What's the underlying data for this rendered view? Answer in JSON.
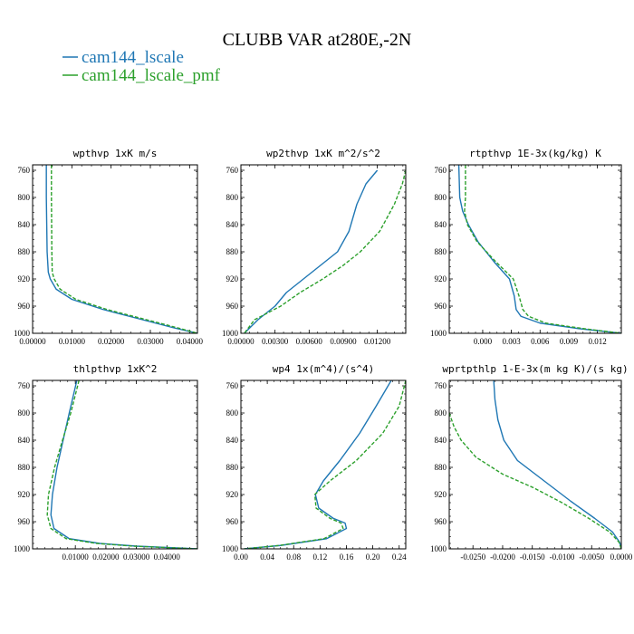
{
  "figure": {
    "title": "CLUBB VAR at280E,-2N",
    "series": [
      {
        "name": "cam144_lscale",
        "color": "#1f77b4",
        "dash": "solid"
      },
      {
        "name": "cam144_lscale_pmf",
        "color": "#2ca02c",
        "dash": "dashed"
      }
    ]
  },
  "chart_data": [
    {
      "type": "line",
      "title": "wpthvp   1xK m/s",
      "xlim": [
        0,
        0.042
      ],
      "xticks": [
        0,
        0.01,
        0.02,
        0.03,
        0.04
      ],
      "xticklabels": [
        "0.00000",
        "0.01000",
        "0.02000",
        "0.03000",
        "0.04000"
      ],
      "ylim": [
        1000,
        752
      ],
      "yticks": [
        760,
        800,
        840,
        880,
        920,
        960,
        1000
      ],
      "series": [
        {
          "name": "cam144_lscale",
          "points": [
            [
              0.0035,
              752
            ],
            [
              0.0035,
              800
            ],
            [
              0.0037,
              880
            ],
            [
              0.004,
              910
            ],
            [
              0.0045,
              920
            ],
            [
              0.006,
              935
            ],
            [
              0.01,
              950
            ],
            [
              0.018,
              965
            ],
            [
              0.028,
              980
            ],
            [
              0.036,
              992
            ],
            [
              0.042,
              1000
            ]
          ]
        },
        {
          "name": "cam144_lscale_pmf",
          "points": [
            [
              0.0048,
              752
            ],
            [
              0.0048,
              800
            ],
            [
              0.0049,
              880
            ],
            [
              0.005,
              910
            ],
            [
              0.0055,
              920
            ],
            [
              0.007,
              935
            ],
            [
              0.011,
              950
            ],
            [
              0.019,
              965
            ],
            [
              0.029,
              980
            ],
            [
              0.037,
              992
            ],
            [
              0.042,
              1000
            ]
          ]
        }
      ]
    },
    {
      "type": "line",
      "title": "wp2thvp   1xK m^2/s^2",
      "xlim": [
        0,
        0.0145
      ],
      "xticks": [
        0,
        0.003,
        0.006,
        0.009,
        0.012
      ],
      "xticklabels": [
        "0.00000",
        "0.00300",
        "0.00600",
        "0.00900",
        "0.01200"
      ],
      "ylim": [
        1000,
        752
      ],
      "yticks": [
        760,
        800,
        840,
        880,
        920,
        960,
        1000
      ],
      "series": [
        {
          "name": "cam144_lscale",
          "points": [
            [
              0.012,
              760
            ],
            [
              0.011,
              780
            ],
            [
              0.0102,
              810
            ],
            [
              0.0095,
              850
            ],
            [
              0.0085,
              880
            ],
            [
              0.007,
              900
            ],
            [
              0.0055,
              920
            ],
            [
              0.004,
              940
            ],
            [
              0.003,
              960
            ],
            [
              0.0015,
              980
            ],
            [
              0.0003,
              1000
            ]
          ]
        },
        {
          "name": "cam144_lscale_pmf",
          "points": [
            [
              0.0145,
              760
            ],
            [
              0.0142,
              780
            ],
            [
              0.0135,
              810
            ],
            [
              0.0122,
              850
            ],
            [
              0.0105,
              880
            ],
            [
              0.009,
              900
            ],
            [
              0.0072,
              920
            ],
            [
              0.0052,
              940
            ],
            [
              0.0035,
              960
            ],
            [
              0.0012,
              980
            ],
            [
              0.0003,
              1000
            ]
          ]
        }
      ]
    },
    {
      "type": "line",
      "title": "rtpthvp   1E-3x(kg/kg) K",
      "xlim": [
        -0.0035,
        0.0145
      ],
      "xticks": [
        0,
        0.003,
        0.006,
        0.009,
        0.012
      ],
      "xticklabels": [
        "0.000",
        "0.003",
        "0.006",
        "0.009",
        "0.012"
      ],
      "ylim": [
        1000,
        752
      ],
      "yticks": [
        760,
        800,
        840,
        880,
        920,
        960,
        1000
      ],
      "series": [
        {
          "name": "cam144_lscale",
          "points": [
            [
              -0.0025,
              752
            ],
            [
              -0.0024,
              800
            ],
            [
              -0.0021,
              820
            ],
            [
              -0.0015,
              840
            ],
            [
              -0.0005,
              865
            ],
            [
              0.0012,
              895
            ],
            [
              0.0028,
              920
            ],
            [
              0.0033,
              945
            ],
            [
              0.0035,
              965
            ],
            [
              0.004,
              975
            ],
            [
              0.006,
              985
            ],
            [
              0.01,
              993
            ],
            [
              0.0145,
              1000
            ]
          ]
        },
        {
          "name": "cam144_lscale_pmf",
          "points": [
            [
              -0.0018,
              752
            ],
            [
              -0.0018,
              800
            ],
            [
              -0.0019,
              820
            ],
            [
              -0.0016,
              840
            ],
            [
              -0.0006,
              865
            ],
            [
              0.0014,
              895
            ],
            [
              0.0032,
              920
            ],
            [
              0.0038,
              945
            ],
            [
              0.0042,
              965
            ],
            [
              0.0048,
              975
            ],
            [
              0.0066,
              985
            ],
            [
              0.0105,
              993
            ],
            [
              0.0145,
              1000
            ]
          ]
        }
      ]
    },
    {
      "type": "line",
      "title": "thlpthvp   1xK^2",
      "xlim": [
        -0.004,
        0.05
      ],
      "xticks": [
        0.01,
        0.02,
        0.03,
        0.04
      ],
      "xticklabels": [
        "0.01000",
        "0.02000",
        "0.03000",
        "0.04000"
      ],
      "ylim": [
        1000,
        752
      ],
      "yticks": [
        760,
        800,
        840,
        880,
        920,
        960,
        1000
      ],
      "series": [
        {
          "name": "cam144_lscale",
          "points": [
            [
              0.0105,
              752
            ],
            [
              0.008,
              800
            ],
            [
              0.006,
              840
            ],
            [
              0.004,
              880
            ],
            [
              0.0025,
              920
            ],
            [
              0.002,
              950
            ],
            [
              0.003,
              970
            ],
            [
              0.008,
              985
            ],
            [
              0.018,
              992
            ],
            [
              0.03,
              996
            ],
            [
              0.05,
              1000
            ]
          ]
        },
        {
          "name": "cam144_lscale_pmf",
          "points": [
            [
              0.0112,
              752
            ],
            [
              0.0085,
              800
            ],
            [
              0.0058,
              840
            ],
            [
              0.0032,
              880
            ],
            [
              0.0012,
              920
            ],
            [
              0.0008,
              950
            ],
            [
              0.002,
              970
            ],
            [
              0.007,
              985
            ],
            [
              0.017,
              992
            ],
            [
              0.029,
              996
            ],
            [
              0.05,
              1000
            ]
          ]
        }
      ]
    },
    {
      "type": "line",
      "title": "wp4   1x(m^4)/(s^4)",
      "xlim": [
        0,
        0.25
      ],
      "xticks": [
        0,
        0.04,
        0.08,
        0.12,
        0.16,
        0.2,
        0.24
      ],
      "xticklabels": [
        "0.00",
        "0.04",
        "0.08",
        "0.12",
        "0.16",
        "0.20",
        "0.24"
      ],
      "ylim": [
        1000,
        752
      ],
      "yticks": [
        760,
        800,
        840,
        880,
        920,
        960,
        1000
      ],
      "series": [
        {
          "name": "cam144_lscale",
          "points": [
            [
              0.228,
              752
            ],
            [
              0.205,
              790
            ],
            [
              0.18,
              830
            ],
            [
              0.15,
              870
            ],
            [
              0.125,
              900
            ],
            [
              0.113,
              920
            ],
            [
              0.118,
              940
            ],
            [
              0.14,
              955
            ],
            [
              0.158,
              962
            ],
            [
              0.16,
              970
            ],
            [
              0.13,
              985
            ],
            [
              0.06,
              995
            ],
            [
              0.005,
              1000
            ]
          ]
        },
        {
          "name": "cam144_lscale_pmf",
          "points": [
            [
              0.25,
              752
            ],
            [
              0.24,
              790
            ],
            [
              0.215,
              830
            ],
            [
              0.175,
              870
            ],
            [
              0.135,
              900
            ],
            [
              0.112,
              920
            ],
            [
              0.114,
              940
            ],
            [
              0.135,
              955
            ],
            [
              0.152,
              962
            ],
            [
              0.155,
              970
            ],
            [
              0.126,
              985
            ],
            [
              0.058,
              995
            ],
            [
              0.005,
              1000
            ]
          ]
        }
      ]
    },
    {
      "type": "line",
      "title": "wprtpthlp   1-E-3x(m kg K)/(s kg)",
      "xlim": [
        -0.029,
        0
      ],
      "xticks": [
        -0.025,
        -0.02,
        -0.015,
        -0.01,
        -0.005,
        0
      ],
      "xticklabels": [
        "-0.0250",
        "-0.0200",
        "-0.0150",
        "-0.0100",
        "-0.0050",
        "0.0000"
      ],
      "ylim": [
        1000,
        752
      ],
      "yticks": [
        760,
        800,
        840,
        880,
        920,
        960,
        1000
      ],
      "series": [
        {
          "name": "cam144_lscale",
          "points": [
            [
              -0.0215,
              752
            ],
            [
              -0.0213,
              780
            ],
            [
              -0.0208,
              810
            ],
            [
              -0.0198,
              840
            ],
            [
              -0.0175,
              870
            ],
            [
              -0.013,
              900
            ],
            [
              -0.0085,
              930
            ],
            [
              -0.0045,
              955
            ],
            [
              -0.0015,
              975
            ],
            [
              -0.0003,
              990
            ],
            [
              0,
              1000
            ]
          ]
        },
        {
          "name": "cam144_lscale_pmf",
          "points": [
            [
              -0.029,
              800
            ],
            [
              -0.0282,
              820
            ],
            [
              -0.027,
              840
            ],
            [
              -0.0245,
              865
            ],
            [
              -0.02,
              890
            ],
            [
              -0.0148,
              910
            ],
            [
              -0.01,
              932
            ],
            [
              -0.0055,
              955
            ],
            [
              -0.002,
              975
            ],
            [
              -0.0004,
              990
            ],
            [
              0,
              1000
            ]
          ]
        }
      ]
    }
  ]
}
